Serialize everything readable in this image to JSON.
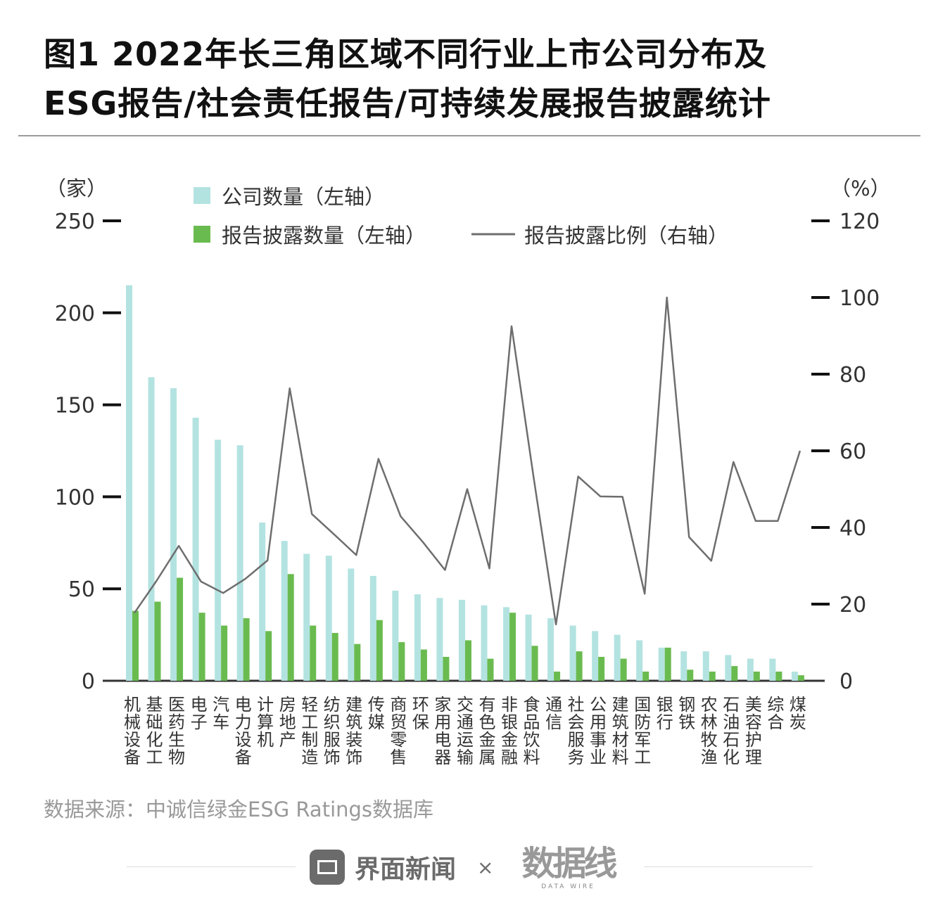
{
  "title_line1": "图1  2022年长三角区域不同行业上市公司分布及",
  "title_line2": "ESG报告/社会责任报告/可持续发展报告披露统计",
  "source": "数据来源：中诚信绿金ESG Ratings数据库",
  "footer": {
    "brand1": "界面新闻",
    "separator": "×",
    "brand2": "数据线",
    "brand2_sub": "DATA WIRE"
  },
  "colors": {
    "company_bar": "#b3e3e1",
    "report_bar": "#6abb4f",
    "line": "#6e6e6e"
  },
  "chart_data": {
    "type": "bar+line",
    "left_unit": "（家）",
    "right_unit": "（%）",
    "left_ylim": [
      0,
      250
    ],
    "left_ticks": [
      0,
      50,
      100,
      150,
      200,
      250
    ],
    "right_ylim": [
      0,
      120
    ],
    "right_ticks": [
      0,
      20,
      40,
      60,
      80,
      100,
      120
    ],
    "legend_position": "top",
    "categories": [
      "机械设备",
      "基础化工",
      "医药生物",
      "电子",
      "汽车",
      "电力设备",
      "计算机",
      "房地产",
      "轻工制造",
      "纺织服饰",
      "建筑装饰",
      "传媒",
      "商贸零售",
      "环保",
      "家用电器",
      "交通运输",
      "有色金属",
      "非银金融",
      "食品饮料",
      "通信",
      "社会服务",
      "公用事业",
      "建筑材料",
      "国防军工",
      "银行",
      "钢铁",
      "农林牧渔",
      "石油石化",
      "美容护理",
      "综合",
      "煤炭"
    ],
    "series": [
      {
        "name": "公司数量（左轴）",
        "axis": "left",
        "type": "bar",
        "values": [
          215,
          165,
          159,
          143,
          131,
          128,
          86,
          76,
          69,
          68,
          61,
          57,
          49,
          47,
          45,
          44,
          41,
          40,
          36,
          34,
          30,
          27,
          25,
          22,
          18,
          16,
          16,
          14,
          12,
          12,
          5
        ]
      },
      {
        "name": "报告披露数量（左轴）",
        "axis": "left",
        "type": "bar",
        "values": [
          38,
          43,
          56,
          37,
          30,
          34,
          27,
          58,
          30,
          26,
          20,
          33,
          21,
          17,
          13,
          22,
          12,
          37,
          19,
          5,
          16,
          13,
          12,
          5,
          18,
          6,
          5,
          8,
          5,
          5,
          3
        ]
      },
      {
        "name": "报告披露比例（右轴）",
        "axis": "right",
        "type": "line",
        "values": [
          17.7,
          26.1,
          35.2,
          25.9,
          22.9,
          26.6,
          31.4,
          76.3,
          43.5,
          38.2,
          32.8,
          57.9,
          42.9,
          36.2,
          28.9,
          50.0,
          29.3,
          92.5,
          52.8,
          14.7,
          53.3,
          48.1,
          48.0,
          22.7,
          100.0,
          37.5,
          31.3,
          57.1,
          41.7,
          41.7,
          60.0
        ]
      }
    ]
  }
}
